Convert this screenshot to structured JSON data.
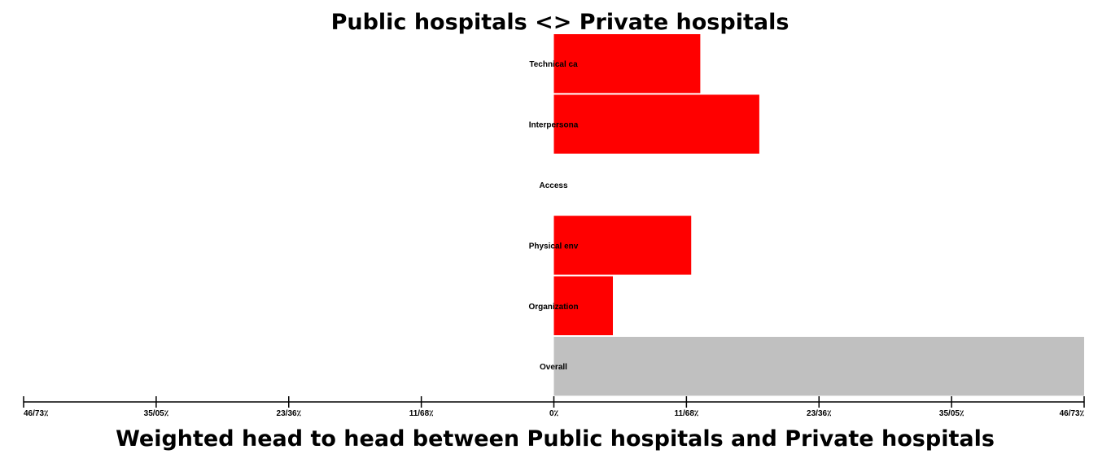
{
  "chart_data": {
    "type": "bar",
    "orientation": "horizontal",
    "title": "Public hospitals <> Private hospitals",
    "xlabel": "Weighted head to head between Public hospitals and Private hospitals",
    "ylabel": "",
    "categories": [
      "Technical ca",
      "Interpersona",
      "Access",
      "Physical env",
      "Organization",
      "Overall"
    ],
    "values": [
      6.45,
      9.05,
      0,
      6.05,
      2.6,
      23.36
    ],
    "bar_colors": [
      "#ff0000",
      "#ff0000",
      "#ff0000",
      "#ff0000",
      "#ff0000",
      "#c0c0c0"
    ],
    "xlim": [
      -23.36,
      23.36
    ],
    "tick_values": [
      -23.36,
      -17.52,
      -11.68,
      -5.84,
      0,
      5.84,
      11.68,
      17.52,
      23.36
    ],
    "tick_labels": [
      "46/73٪",
      "35/05٪",
      "23/36٪",
      "11/68٪",
      "0٪",
      "11/68٪",
      "23/36٪",
      "35/05٪",
      "46/73٪"
    ],
    "grid": false,
    "legend": "none"
  }
}
